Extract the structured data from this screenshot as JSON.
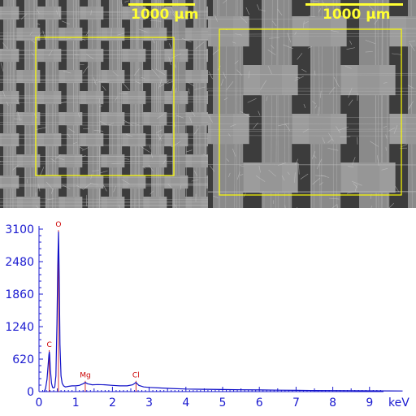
{
  "micrographs": [
    {
      "scale_label": "1000 µm",
      "inset": "region box"
    },
    {
      "scale_label": "1000 µm",
      "inset": "region box"
    }
  ],
  "colors": {
    "scale": "#ffff33",
    "box": "#ffff00",
    "axis": "#1a1ad0",
    "spectrum_line": "#1010c8",
    "peak_label": "#cc0000",
    "fabric_bg": "#3c3c3c",
    "yarn": "#9a9a9a"
  },
  "chart_data": {
    "type": "line",
    "title": "",
    "xlabel": "keV",
    "ylabel": "",
    "xlim": [
      0,
      10
    ],
    "ylim": [
      0,
      3100
    ],
    "xticks": [
      "0",
      "1",
      "2",
      "3",
      "4",
      "5",
      "6",
      "7",
      "8",
      "9"
    ],
    "yticks": [
      "0",
      "620",
      "1240",
      "1860",
      "2480",
      "3100"
    ],
    "grid": false,
    "peaks": [
      {
        "label": "C",
        "x": 0.28
      },
      {
        "label": "O",
        "x": 0.53
      },
      {
        "label": "Mg",
        "x": 1.26
      },
      {
        "label": "Cl",
        "x": 2.64
      }
    ],
    "series": [
      {
        "x": [
          0.14,
          0.18,
          0.22,
          0.25,
          0.27,
          0.28,
          0.29,
          0.31,
          0.34,
          0.37,
          0.4,
          0.43,
          0.46,
          0.49,
          0.51,
          0.53,
          0.55,
          0.57,
          0.6,
          0.63,
          0.67,
          0.72,
          0.8,
          0.9,
          1.0,
          1.1,
          1.2,
          1.26,
          1.32,
          1.45,
          1.6,
          1.8,
          2.0,
          2.2,
          2.4,
          2.55,
          2.64,
          2.72,
          2.85,
          3.0,
          3.3,
          3.6,
          4.0,
          4.5,
          5.0,
          5.5,
          6.0,
          6.5,
          7.0,
          7.5,
          8.0,
          8.5,
          9.0,
          9.5,
          9.9
        ],
        "y": [
          0,
          60,
          240,
          520,
          700,
          760,
          700,
          420,
          160,
          80,
          70,
          90,
          300,
          1300,
          2400,
          3050,
          2200,
          900,
          300,
          160,
          110,
          90,
          100,
          110,
          110,
          120,
          150,
          175,
          150,
          130,
          135,
          130,
          120,
          110,
          110,
          130,
          175,
          120,
          90,
          80,
          70,
          60,
          50,
          45,
          40,
          35,
          32,
          28,
          25,
          22,
          20,
          18,
          16,
          14,
          12
        ]
      }
    ]
  }
}
